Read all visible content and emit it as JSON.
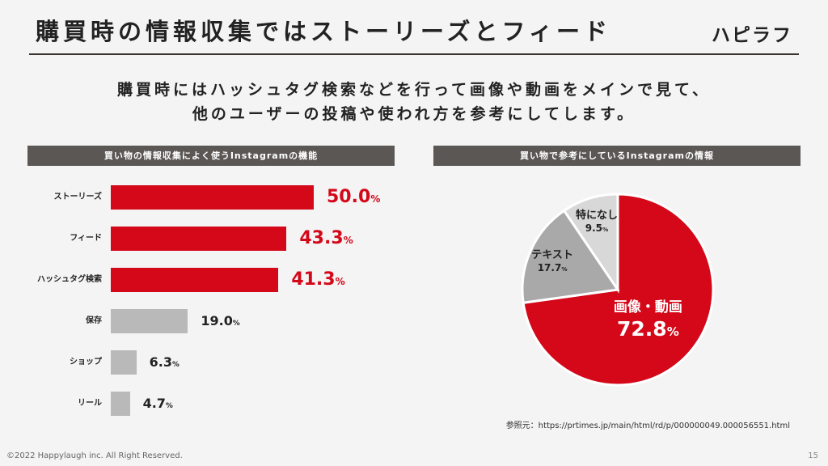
{
  "header": {
    "title": "購買時の情報収集ではストーリーズとフィード",
    "logo": "ハピラフ"
  },
  "lead": {
    "line1": "購買時にはハッシュタグ検索などを行って画像や動画をメインで見て、",
    "line2": "他のユーザーの投稿や使われ方を参考にしてします。"
  },
  "colors": {
    "accent": "#d40819",
    "gray": "#b9b9b9",
    "pie_gray": "#a9a9a9",
    "pie_light": "#d8d8d8",
    "dark": "#5b5755"
  },
  "chart_data": [
    {
      "type": "bar",
      "orientation": "horizontal",
      "title": "買い物の情報収集によく使うInstagramの機能",
      "categories": [
        "ストーリーズ",
        "フィード",
        "ハッシュタグ検索",
        "保存",
        "ショップ",
        "リール"
      ],
      "values": [
        50.0,
        43.3,
        41.3,
        19.0,
        6.3,
        4.7
      ],
      "value_labels": [
        "50.0",
        "43.3",
        "41.3",
        "19.0",
        "6.3",
        "4.7"
      ],
      "unit": "%",
      "highlighted": [
        true,
        true,
        true,
        false,
        false,
        false
      ]
    },
    {
      "type": "pie",
      "title": "買い物で参考にしているInstagramの情報",
      "slices": [
        {
          "label": "画像・動画",
          "value": 72.8,
          "value_label": "72.8",
          "color": "#d40819"
        },
        {
          "label": "テキスト",
          "value": 17.7,
          "value_label": "17.7",
          "color": "#a9a9a9"
        },
        {
          "label": "特になし",
          "value": 9.5,
          "value_label": "9.5",
          "color": "#d8d8d8"
        }
      ],
      "unit": "%"
    }
  ],
  "footer": {
    "source": "参照元：https://prtimes.jp/main/html/rd/p/000000049.000056551.html",
    "copyright": "©2022 Happylaugh inc. All Right Reserved.",
    "page": "15"
  }
}
